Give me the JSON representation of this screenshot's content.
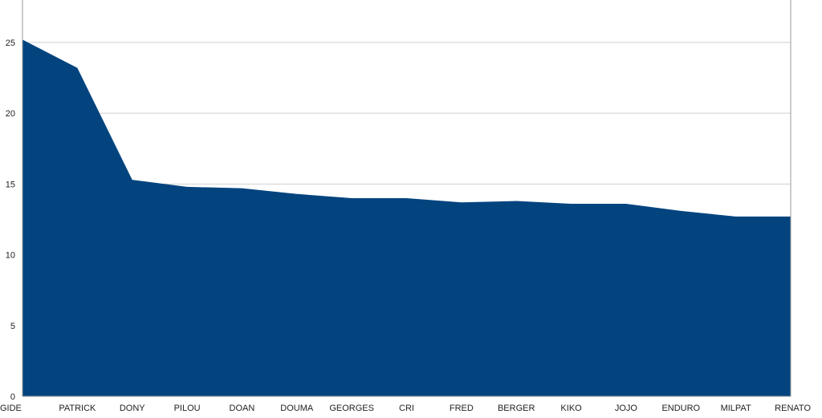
{
  "chart_data": {
    "type": "area",
    "title": "",
    "xlabel": "",
    "ylabel": "",
    "categories": [
      "GIDE",
      "PATRICK",
      "DONY",
      "PILOU",
      "DOAN",
      "DOUMA",
      "GEORGES",
      "CRI",
      "FRED",
      "BERGER",
      "KIKO",
      "JOJO",
      "ENDURO",
      "MILPAT",
      "RENATO"
    ],
    "series": [
      {
        "values": [
          25.2,
          23.2,
          15.3,
          14.8,
          14.7,
          14.3,
          14.0,
          14.0,
          13.7,
          13.8,
          13.6,
          13.6,
          13.1,
          12.7,
          12.7
        ]
      }
    ],
    "ylim": [
      0,
      28
    ],
    "yticks": [
      0,
      5,
      10,
      15,
      20,
      25
    ],
    "grid": true,
    "legend": "none",
    "colors": {
      "fill": "#03447f",
      "grid": "#cfcfcf",
      "axis": "#9a9a9a",
      "text": "#222222"
    }
  }
}
